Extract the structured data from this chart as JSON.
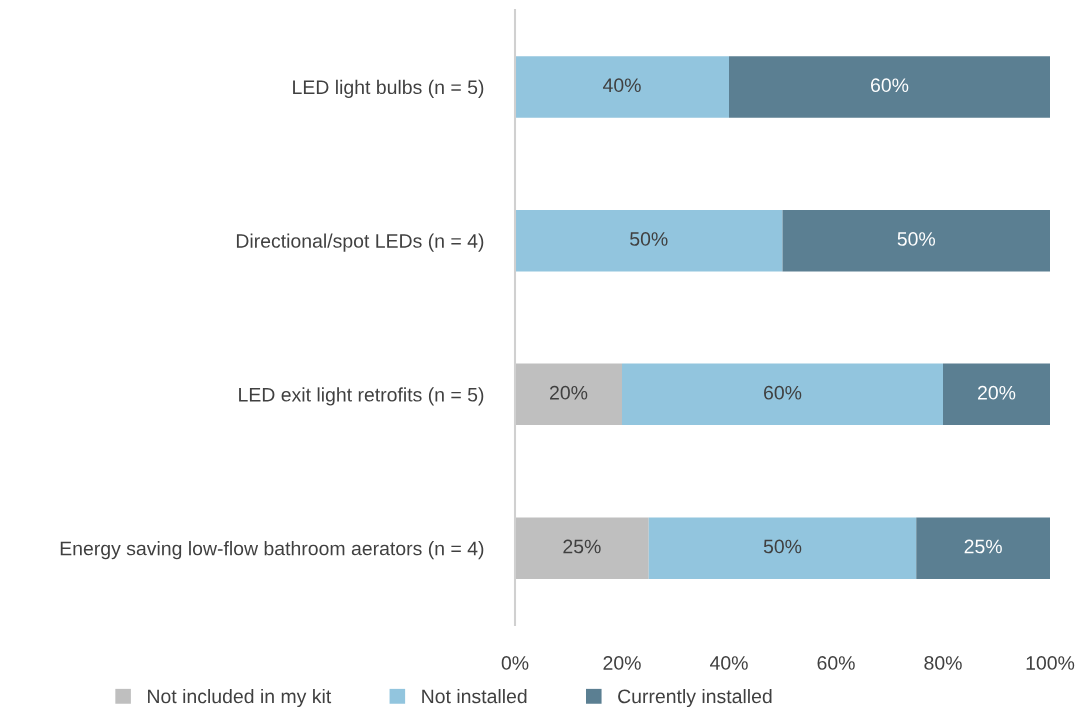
{
  "chart_data": {
    "type": "bar",
    "orientation": "horizontal",
    "stacked": true,
    "categories": [
      "LED light bulbs (n = 5)",
      "Directional/spot LEDs (n = 4)",
      "LED exit light retrofits (n = 5)",
      "Energy saving low-flow bathroom aerators (n = 4)"
    ],
    "series": [
      {
        "name": "Not included in my kit",
        "color": "#bfbfbf",
        "values": [
          0,
          0,
          20,
          25
        ],
        "value_labels": [
          null,
          null,
          "20%",
          "25%"
        ]
      },
      {
        "name": "Not installed",
        "color": "#92c5de",
        "values": [
          40,
          50,
          60,
          50
        ],
        "value_labels": [
          "40%",
          "50%",
          "60%",
          "50%"
        ]
      },
      {
        "name": "Currently installed",
        "color": "#5b7f92",
        "values": [
          60,
          50,
          20,
          25
        ],
        "value_labels": [
          "60%",
          "50%",
          "20%",
          "25%"
        ]
      }
    ],
    "xlim": [
      0,
      100
    ],
    "xticks": [
      {
        "value": 0,
        "label": "0%"
      },
      {
        "value": 20,
        "label": "20%"
      },
      {
        "value": 40,
        "label": "40%"
      },
      {
        "value": 60,
        "label": "60%"
      },
      {
        "value": 80,
        "label": "80%"
      },
      {
        "value": 100,
        "label": "100%"
      }
    ],
    "grid": false,
    "legend": "bottom"
  }
}
